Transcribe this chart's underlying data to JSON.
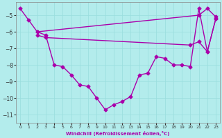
{
  "xlabel": "Windchill (Refroidissement éolien,°C)",
  "background_color": "#b3ecec",
  "grid_color": "#99dddd",
  "line_color": "#aa00aa",
  "ylim": [
    -11.5,
    -4.2
  ],
  "xlim": [
    -0.5,
    23.5
  ],
  "yticks": [
    -11,
    -10,
    -9,
    -8,
    -7,
    -6,
    -5
  ],
  "xticks": [
    0,
    1,
    2,
    3,
    4,
    5,
    6,
    7,
    8,
    9,
    10,
    11,
    12,
    13,
    14,
    15,
    16,
    17,
    18,
    19,
    20,
    21,
    22,
    23
  ],
  "line1": {
    "x": [
      0,
      1,
      2,
      3,
      4,
      5,
      6,
      7,
      8,
      9,
      10,
      11,
      12,
      13,
      14,
      15,
      16,
      17,
      18,
      19,
      20,
      21,
      22,
      23
    ],
    "y": [
      -4.6,
      -5.3,
      -6.0,
      -6.2,
      -8.0,
      -8.1,
      -8.6,
      -9.2,
      -9.3,
      -10.0,
      -10.7,
      -10.4,
      -10.2,
      -9.9,
      -8.6,
      -8.5,
      -7.5,
      -7.6,
      -8.0,
      -8.0,
      -8.1,
      -4.6,
      -7.2,
      -5.2
    ]
  },
  "line2": {
    "x": [
      2,
      21,
      22,
      23
    ],
    "y": [
      -6.0,
      -5.0,
      -4.6,
      -5.1
    ]
  },
  "line3": {
    "x": [
      2,
      3,
      20,
      21,
      22,
      23
    ],
    "y": [
      -6.2,
      -6.35,
      -6.8,
      -6.6,
      -7.2,
      -5.2
    ]
  }
}
